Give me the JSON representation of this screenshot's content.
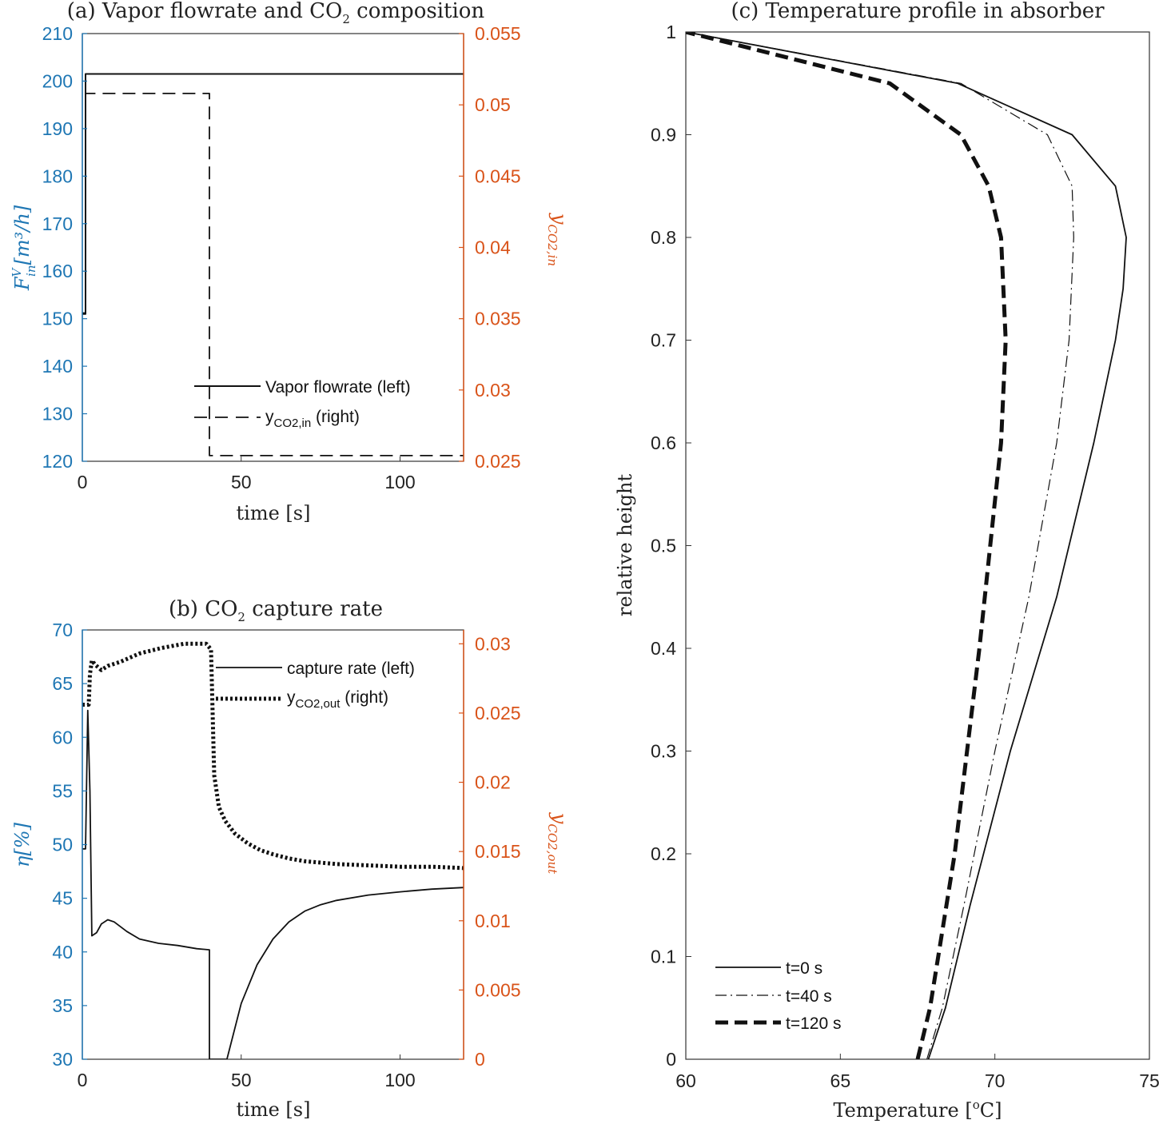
{
  "colors": {
    "left_axis": "#1f77b4",
    "right_axis": "#d95319",
    "ink": "#111111"
  },
  "chart_data": [
    {
      "id": "a",
      "type": "line",
      "title": "(a) Vapor flowrate and CO",
      "title_sub": "2",
      "title_tail": " composition",
      "xlabel": "time [s]",
      "ylabel_left": "F",
      "ylabel_left_sup": "V",
      "ylabel_left_sub": "in",
      "ylabel_left_tail": "[m³/h]",
      "ylabel_right": "y",
      "ylabel_right_sub": "CO2,in",
      "xlim": [
        0,
        120
      ],
      "ylim_left": [
        120,
        210
      ],
      "ylim_right": [
        0.025,
        0.055
      ],
      "xticks": [
        0,
        50,
        100
      ],
      "yticks_left": [
        120,
        130,
        140,
        150,
        160,
        170,
        180,
        190,
        200,
        210
      ],
      "yticks_right": [
        0.025,
        0.03,
        0.035,
        0.04,
        0.045,
        0.05,
        0.055
      ],
      "ytick_labels_right": [
        "0.025",
        "0.03",
        "0.035",
        "0.04",
        "0.045",
        "0.05",
        "0.055"
      ],
      "series": [
        {
          "name": "Vapor flowrate (left)",
          "axis": "left",
          "style": "solid",
          "width": 2,
          "color": "#111111",
          "x": [
            0,
            1,
            1,
            120
          ],
          "y": [
            151,
            151,
            201.5,
            201.5
          ]
        },
        {
          "name": "y",
          "name_sub": "CO2,in",
          "name_tail": " (right)",
          "axis": "right",
          "style": "dashed",
          "width": 1.8,
          "color": "#111111",
          "x": [
            0,
            1,
            1,
            40,
            40,
            120
          ],
          "y": [
            0.0354,
            0.0354,
            0.0508,
            0.0508,
            0.0254,
            0.0254
          ]
        }
      ]
    },
    {
      "id": "b",
      "type": "line",
      "title": "(b) CO",
      "title_sub": "2",
      "title_tail": " capture rate",
      "xlabel": "time [s]",
      "ylabel_left": "η[%]",
      "ylabel_right": "y",
      "ylabel_right_sub": "CO2,out",
      "xlim": [
        0,
        120
      ],
      "ylim_left": [
        30,
        70
      ],
      "ylim_right": [
        0,
        0.031
      ],
      "xticks": [
        0,
        50,
        100
      ],
      "yticks_left": [
        30,
        35,
        40,
        45,
        50,
        55,
        60,
        65,
        70
      ],
      "yticks_right": [
        0,
        0.005,
        0.01,
        0.015,
        0.02,
        0.025,
        0.03
      ],
      "ytick_labels_right": [
        "0",
        "0.005",
        "0.01",
        "0.015",
        "0.02",
        "0.025",
        "0.03"
      ],
      "series": [
        {
          "name": "capture rate (left)",
          "axis": "left",
          "style": "solid",
          "width": 1.8,
          "color": "#111111",
          "x": [
            0,
            1,
            1.7,
            2.4,
            3,
            4.5,
            6,
            8,
            10,
            14,
            18,
            24,
            30,
            36,
            40,
            40,
            45.5,
            50,
            55,
            60,
            65,
            70,
            75,
            80,
            90,
            100,
            110,
            120
          ],
          "y": [
            49.6,
            49.6,
            62.5,
            55,
            41.5,
            41.8,
            42.6,
            43.0,
            42.8,
            41.9,
            41.2,
            40.8,
            40.6,
            40.3,
            40.2,
            30,
            30,
            35.2,
            38.8,
            41.2,
            42.8,
            43.8,
            44.4,
            44.8,
            45.3,
            45.6,
            45.85,
            46.0
          ]
        },
        {
          "name": "y",
          "name_sub": "CO2,out",
          "name_tail": " (right)",
          "axis": "right",
          "style": "dotted",
          "width": 5,
          "color": "#111111",
          "x": [
            0,
            2,
            2.4,
            3,
            4,
            6,
            8,
            12,
            18,
            25,
            32,
            39,
            40.5,
            41.5,
            43,
            45,
            48,
            52,
            56,
            60,
            65,
            70,
            80,
            90,
            100,
            110,
            120
          ],
          "y": [
            0.0256,
            0.0256,
            0.0278,
            0.0288,
            0.0285,
            0.0281,
            0.0284,
            0.0287,
            0.0293,
            0.0297,
            0.03,
            0.03,
            0.0296,
            0.0205,
            0.0182,
            0.0172,
            0.0163,
            0.0156,
            0.0151,
            0.0148,
            0.0145,
            0.0143,
            0.0141,
            0.014,
            0.0139,
            0.0139,
            0.0138
          ]
        }
      ]
    },
    {
      "id": "c",
      "type": "line",
      "title": "(c) Temperature profile in absorber",
      "xlabel": "Temperature [°C]",
      "xlabel_pre": "Temperature [",
      "xlabel_sup": "o",
      "xlabel_tail": "C]",
      "ylabel": "relative height",
      "xlim": [
        60,
        75
      ],
      "ylim": [
        0,
        1
      ],
      "xticks": [
        60,
        65,
        70,
        75
      ],
      "yticks": [
        0,
        0.1,
        0.2,
        0.3,
        0.4,
        0.5,
        0.6,
        0.7,
        0.8,
        0.9,
        1
      ],
      "ytick_labels": [
        "0",
        "0.1",
        "0.2",
        "0.3",
        "0.4",
        "0.5",
        "0.6",
        "0.7",
        "0.8",
        "0.9",
        "1"
      ],
      "series": [
        {
          "name": "t=0 s",
          "style": "solid",
          "width": 1.8,
          "color": "#111111",
          "x": [
            67.85,
            68.4,
            69.2,
            70.5,
            72.0,
            73.2,
            73.9,
            74.15,
            74.25,
            73.9,
            72.5,
            68.8,
            60
          ],
          "y": [
            0,
            0.05,
            0.15,
            0.3,
            0.45,
            0.6,
            0.7,
            0.75,
            0.8,
            0.85,
            0.9,
            0.95,
            1
          ]
        },
        {
          "name": "t=40 s",
          "style": "dashdot",
          "width": 1.2,
          "color": "#111111",
          "x": [
            67.8,
            68.3,
            69.0,
            70.0,
            71.1,
            72.0,
            72.4,
            72.55,
            72.5,
            71.7,
            68.9,
            60
          ],
          "y": [
            0,
            0.05,
            0.15,
            0.3,
            0.45,
            0.6,
            0.7,
            0.8,
            0.85,
            0.9,
            0.95,
            1
          ]
        },
        {
          "name": "t=120 s",
          "style": "dashed",
          "width": 5,
          "color": "#111111",
          "x": [
            67.5,
            67.9,
            68.7,
            69.5,
            70.2,
            70.35,
            70.2,
            69.8,
            68.9,
            66.6,
            60
          ],
          "y": [
            0,
            0.05,
            0.2,
            0.4,
            0.6,
            0.7,
            0.8,
            0.85,
            0.9,
            0.95,
            1
          ]
        }
      ]
    }
  ]
}
